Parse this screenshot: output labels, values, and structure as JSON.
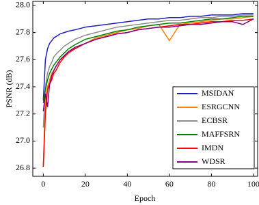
{
  "chart_data": {
    "type": "line",
    "xlabel": "Epoch",
    "ylabel": "PSNR (dB)",
    "x": [
      0,
      1,
      2,
      3,
      4,
      5,
      6,
      8,
      10,
      12,
      15,
      20,
      25,
      30,
      35,
      40,
      45,
      50,
      55,
      60,
      65,
      70,
      75,
      80,
      85,
      90,
      95,
      100
    ],
    "series": [
      {
        "name": "MSIDAN",
        "color": "#1f1fbf",
        "values": [
          27.3,
          27.6,
          27.68,
          27.72,
          27.74,
          27.76,
          27.77,
          27.79,
          27.8,
          27.81,
          27.82,
          27.84,
          27.85,
          27.86,
          27.87,
          27.88,
          27.89,
          27.9,
          27.9,
          27.91,
          27.91,
          27.92,
          27.92,
          27.93,
          27.93,
          27.93,
          27.94,
          27.94
        ]
      },
      {
        "name": "ESRGCNN",
        "color": "#ff8000",
        "values": [
          26.82,
          27.3,
          27.4,
          27.45,
          27.5,
          27.52,
          27.55,
          27.6,
          27.62,
          27.66,
          27.68,
          27.72,
          27.76,
          27.78,
          27.8,
          27.82,
          27.83,
          27.85,
          27.86,
          27.74,
          27.86,
          27.87,
          27.88,
          27.89,
          27.9,
          27.9,
          27.91,
          27.92
        ]
      },
      {
        "name": "ECBSR",
        "color": "#8c8c8c",
        "values": [
          27.1,
          27.4,
          27.5,
          27.55,
          27.58,
          27.62,
          27.64,
          27.67,
          27.7,
          27.72,
          27.75,
          27.78,
          27.8,
          27.82,
          27.84,
          27.85,
          27.86,
          27.87,
          27.88,
          27.89,
          27.89,
          27.9,
          27.91,
          27.91,
          27.92,
          27.92,
          27.93,
          27.93
        ]
      },
      {
        "name": "MAFFSRN",
        "color": "#008000",
        "values": [
          27.28,
          27.38,
          27.45,
          27.5,
          27.53,
          27.56,
          27.58,
          27.62,
          27.65,
          27.68,
          27.71,
          27.75,
          27.77,
          27.79,
          27.81,
          27.82,
          27.84,
          27.85,
          27.86,
          27.87,
          27.87,
          27.88,
          27.89,
          27.9,
          27.9,
          27.91,
          27.92,
          27.92
        ]
      },
      {
        "name": "IMDN",
        "color": "#ff0000",
        "values": [
          26.81,
          27.2,
          27.38,
          27.42,
          27.45,
          27.5,
          27.52,
          27.58,
          27.62,
          27.65,
          27.68,
          27.72,
          27.75,
          27.77,
          27.79,
          27.8,
          27.82,
          27.83,
          27.84,
          27.85,
          27.86,
          27.86,
          27.87,
          27.88,
          27.88,
          27.89,
          27.89,
          27.9
        ]
      },
      {
        "name": "WDSR",
        "color": "#800080",
        "values": [
          27.22,
          27.35,
          27.25,
          27.42,
          27.48,
          27.52,
          27.55,
          27.6,
          27.63,
          27.66,
          27.69,
          27.72,
          27.75,
          27.77,
          27.79,
          27.8,
          27.82,
          27.83,
          27.84,
          27.84,
          27.85,
          27.86,
          27.86,
          27.87,
          27.88,
          27.88,
          27.86,
          27.9
        ]
      }
    ],
    "xlim": [
      -5,
      102
    ],
    "xticks": [
      0,
      20,
      40,
      60,
      80,
      100
    ],
    "ylim": [
      26.74,
      28.03
    ],
    "yticks": [
      26.8,
      {
        "value": 27.0,
        "label": "27.0"
      },
      27.2,
      27.4,
      27.6,
      27.8,
      {
        "value": 28.0,
        "label": "28.0"
      }
    ],
    "legend": "lower right",
    "grid": false
  }
}
